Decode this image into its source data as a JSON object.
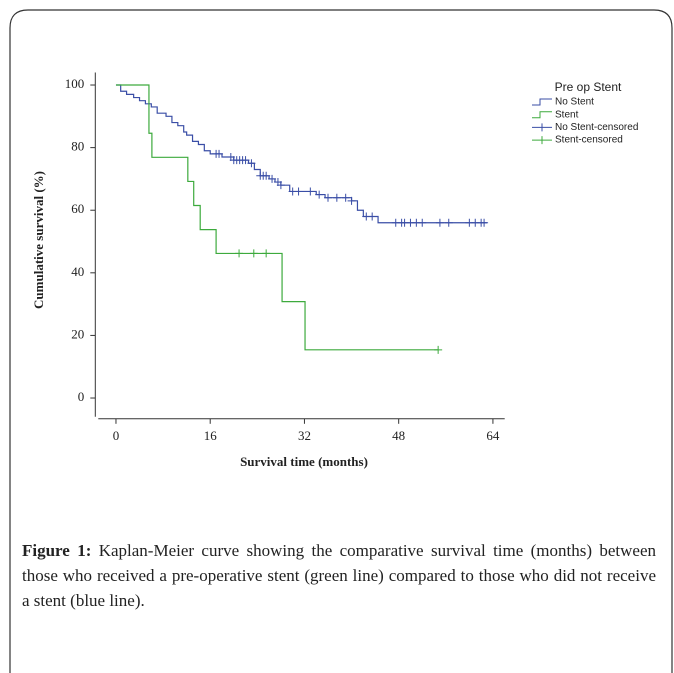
{
  "chart_data": {
    "type": "line",
    "step": true,
    "y_label": "Cumulative survival (%)",
    "x_label": "Survival time (months)",
    "xlim": [
      -3,
      66
    ],
    "ylim": [
      -6,
      104
    ],
    "xticks": [
      0,
      16,
      32,
      48,
      64
    ],
    "yticks": [
      0,
      20,
      40,
      60,
      80,
      100
    ],
    "legend_title": "Pre op Stent",
    "series": [
      {
        "name": "No Stent",
        "color": "#3a4ea6",
        "style": "step",
        "x": [
          0,
          0.8,
          1.8,
          3,
          4,
          5,
          6,
          7,
          8.5,
          9.5,
          10.5,
          11.5,
          12,
          13,
          14,
          15,
          16,
          18,
          20,
          22.5,
          23.5,
          24.5,
          26,
          27,
          28,
          29.5,
          34,
          35.5,
          40,
          41,
          42,
          44.5,
          63
        ],
        "values": [
          100,
          98,
          97,
          96,
          95,
          94,
          93,
          91,
          90,
          88,
          87,
          85,
          84,
          82,
          81,
          79,
          78,
          77,
          76,
          75,
          73,
          71,
          70,
          69,
          68,
          66,
          65,
          64,
          63,
          60,
          58,
          56,
          56
        ]
      },
      {
        "name": "Stent",
        "color": "#3daa3d",
        "style": "step",
        "x": [
          0,
          5.6,
          6.1,
          12.2,
          13.2,
          14.3,
          17,
          28.2,
          32.1,
          54.7
        ],
        "values": [
          100,
          84.6,
          76.9,
          69.2,
          61.5,
          53.8,
          46.2,
          30.8,
          15.4,
          15.4
        ]
      },
      {
        "name": "No Stent-censored",
        "color": "#3a4ea6",
        "style": "marker",
        "x": [
          17,
          17.5,
          19.5,
          20,
          20.5,
          21,
          21.5,
          22,
          23,
          24.5,
          25,
          25.5,
          26.5,
          27.5,
          28,
          30,
          31,
          33,
          34.5,
          36,
          37.5,
          39,
          40,
          42.5,
          43.5,
          47.5,
          48.5,
          49,
          50,
          51,
          52,
          55,
          56.5,
          60,
          61,
          62,
          62.5
        ],
        "values": [
          78,
          78,
          77,
          76,
          76,
          76,
          76,
          76,
          75,
          71,
          71,
          71,
          70,
          69,
          68,
          66,
          66,
          66,
          65,
          64,
          64,
          64,
          63,
          58,
          58,
          56,
          56,
          56,
          56,
          56,
          56,
          56,
          56,
          56,
          56,
          56,
          56
        ]
      },
      {
        "name": "Stent-censored",
        "color": "#3daa3d",
        "style": "marker",
        "x": [
          20.9,
          23.4,
          25.5,
          54.7
        ],
        "values": [
          46.2,
          46.2,
          46.2,
          15.4
        ]
      }
    ]
  },
  "figure": {
    "label": "Figure 1:",
    "caption": "Kaplan-Meier curve showing the comparative survival time (months) between those who received a pre-operative stent (green line) compared to those who did not receive a stent (blue line)."
  }
}
